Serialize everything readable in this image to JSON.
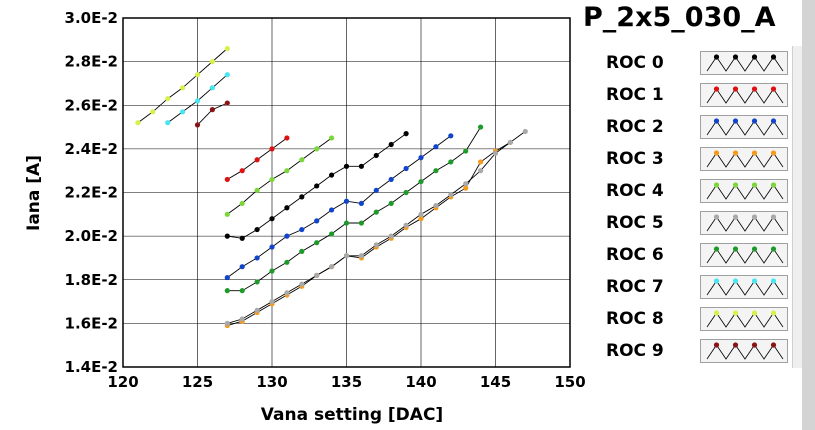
{
  "panel_title": "P_2x5_030_A",
  "legend": [
    {
      "label": "ROC 0",
      "color": "#000000"
    },
    {
      "label": "ROC 1",
      "color": "#dd1111"
    },
    {
      "label": "ROC 2",
      "color": "#1144cc"
    },
    {
      "label": "ROC 3",
      "color": "#f59a1a"
    },
    {
      "label": "ROC 4",
      "color": "#7cd63a"
    },
    {
      "label": "ROC 5",
      "color": "#a9a9a9"
    },
    {
      "label": "ROC 6",
      "color": "#1e9a2a"
    },
    {
      "label": "ROC 7",
      "color": "#46e6f2"
    },
    {
      "label": "ROC 8",
      "color": "#d4f24a"
    },
    {
      "label": "ROC 9",
      "color": "#8a1414"
    }
  ],
  "chart_data": {
    "type": "line",
    "title": "",
    "xlabel": "Vana setting [DAC]",
    "ylabel": "Iana [A]",
    "xlim": [
      120,
      150
    ],
    "ylim": [
      0.014,
      0.03
    ],
    "x_ticks": [
      120,
      125,
      130,
      135,
      140,
      145,
      150
    ],
    "x_tick_labels": [
      "120",
      "125",
      "130",
      "135",
      "140",
      "145",
      "150"
    ],
    "y_ticks": [
      0.014,
      0.016,
      0.018,
      0.02,
      0.022,
      0.024,
      0.026,
      0.028,
      0.03
    ],
    "y_tick_labels": [
      "1.4E-2",
      "1.6E-2",
      "1.8E-2",
      "2.0E-2",
      "2.2E-2",
      "2.4E-2",
      "2.6E-2",
      "2.8E-2",
      "3.0E-2"
    ],
    "grid": true,
    "series": [
      {
        "name": "ROC 0",
        "color": "#000000",
        "x": [
          127,
          128,
          129,
          130,
          131,
          132,
          133,
          134,
          135,
          136,
          137,
          138,
          139
        ],
        "y": [
          0.02,
          0.0199,
          0.0203,
          0.0208,
          0.0213,
          0.0218,
          0.0223,
          0.0228,
          0.0232,
          0.0232,
          0.0237,
          0.0242,
          0.0247
        ]
      },
      {
        "name": "ROC 1",
        "color": "#dd1111",
        "x": [
          127,
          128,
          129,
          130,
          131
        ],
        "y": [
          0.0226,
          0.023,
          0.0235,
          0.024,
          0.0245
        ]
      },
      {
        "name": "ROC 2",
        "color": "#1144cc",
        "x": [
          127,
          128,
          129,
          130,
          131,
          132,
          133,
          134,
          135,
          136,
          137,
          138,
          139,
          140,
          141,
          142
        ],
        "y": [
          0.0181,
          0.0186,
          0.019,
          0.0195,
          0.02,
          0.0203,
          0.0207,
          0.0212,
          0.0216,
          0.0215,
          0.0221,
          0.0226,
          0.0231,
          0.0236,
          0.0241,
          0.0246
        ]
      },
      {
        "name": "ROC 3",
        "color": "#f59a1a",
        "x": [
          127,
          128,
          129,
          130,
          131,
          132,
          133,
          134,
          135,
          136,
          137,
          138,
          139,
          140,
          141,
          142,
          143,
          144,
          145,
          146
        ],
        "y": [
          0.0159,
          0.0161,
          0.0165,
          0.0169,
          0.0173,
          0.0177,
          0.0182,
          0.0186,
          0.0191,
          0.019,
          0.0195,
          0.0199,
          0.0204,
          0.0208,
          0.0213,
          0.0218,
          0.0222,
          0.0234,
          0.0239,
          0.0243
        ]
      },
      {
        "name": "ROC 4",
        "color": "#7cd63a",
        "x": [
          127,
          128,
          129,
          130,
          131,
          132,
          133,
          134
        ],
        "y": [
          0.021,
          0.0215,
          0.0221,
          0.0226,
          0.023,
          0.0235,
          0.024,
          0.0245
        ]
      },
      {
        "name": "ROC 5",
        "color": "#a9a9a9",
        "x": [
          127,
          128,
          129,
          130,
          131,
          132,
          133,
          134,
          135,
          136,
          137,
          138,
          139,
          140,
          141,
          142,
          143,
          144,
          145,
          146,
          147
        ],
        "y": [
          0.016,
          0.0162,
          0.0166,
          0.017,
          0.0174,
          0.0178,
          0.0182,
          0.0186,
          0.0191,
          0.0191,
          0.0196,
          0.02,
          0.0205,
          0.021,
          0.0214,
          0.0219,
          0.0224,
          0.023,
          0.0238,
          0.0243,
          0.0248
        ]
      },
      {
        "name": "ROC 6",
        "color": "#1e9a2a",
        "x": [
          127,
          128,
          129,
          130,
          131,
          132,
          133,
          134,
          135,
          136,
          137,
          138,
          139,
          140,
          141,
          142,
          143,
          144
        ],
        "y": [
          0.0175,
          0.0175,
          0.0179,
          0.0184,
          0.0188,
          0.0193,
          0.0197,
          0.0201,
          0.0206,
          0.0206,
          0.0211,
          0.0215,
          0.022,
          0.0225,
          0.023,
          0.0234,
          0.0239,
          0.025
        ]
      },
      {
        "name": "ROC 7",
        "color": "#46e6f2",
        "x": [
          123,
          124,
          125,
          126,
          127
        ],
        "y": [
          0.0252,
          0.0257,
          0.0262,
          0.0268,
          0.0274
        ]
      },
      {
        "name": "ROC 8",
        "color": "#d4f24a",
        "x": [
          121,
          122,
          123,
          124,
          125,
          126,
          127
        ],
        "y": [
          0.0252,
          0.0257,
          0.0263,
          0.0268,
          0.0274,
          0.028,
          0.0286
        ]
      },
      {
        "name": "ROC 9",
        "color": "#8a1414",
        "x": [
          125,
          126,
          127
        ],
        "y": [
          0.0251,
          0.0258,
          0.0261
        ]
      }
    ]
  }
}
